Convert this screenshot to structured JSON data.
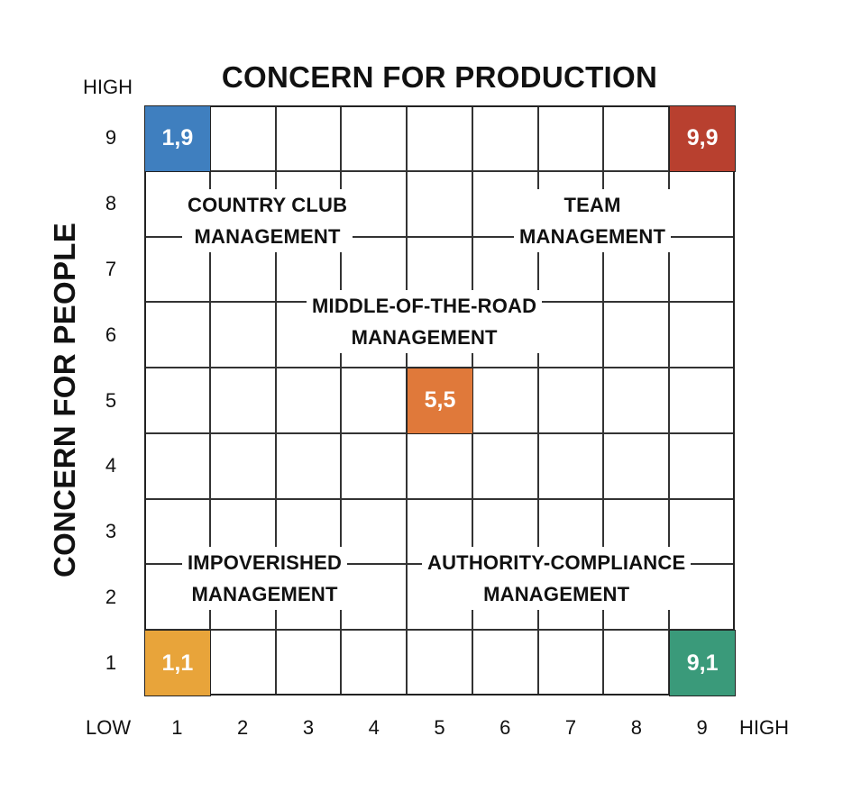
{
  "title": "CONCERN FOR PRODUCTION",
  "y_title": "CONCERN FOR PEOPLE",
  "y_high": "HIGH",
  "x_low": "LOW",
  "x_high": "HIGH",
  "x_ticks": [
    "1",
    "2",
    "3",
    "4",
    "5",
    "6",
    "7",
    "8",
    "9"
  ],
  "y_ticks": [
    "9",
    "8",
    "7",
    "6",
    "5",
    "4",
    "3",
    "2",
    "1"
  ],
  "cells": [
    {
      "label": "1,9",
      "x": 1,
      "y": 9,
      "color": "#3f7fbf"
    },
    {
      "label": "9,9",
      "x": 9,
      "y": 9,
      "color": "#b8402f"
    },
    {
      "label": "5,5",
      "x": 5,
      "y": 5,
      "color": "#e0793a"
    },
    {
      "label": "1,1",
      "x": 1,
      "y": 1,
      "color": "#e8a43a"
    },
    {
      "label": "9,1",
      "x": 9,
      "y": 1,
      "color": "#3a9a7a"
    }
  ],
  "regions": {
    "country_club": {
      "line1": "COUNTRY CLUB",
      "line2": "MANAGEMENT"
    },
    "team": {
      "line1": "TEAM",
      "line2": "MANAGEMENT"
    },
    "middle": {
      "line1": "MIDDLE-OF-THE-ROAD",
      "line2": "MANAGEMENT"
    },
    "impoverished": {
      "line1": "IMPOVERISHED",
      "line2": "MANAGEMENT"
    },
    "authority": {
      "line1": "AUTHORITY-COMPLIANCE",
      "line2": "MANAGEMENT"
    }
  }
}
